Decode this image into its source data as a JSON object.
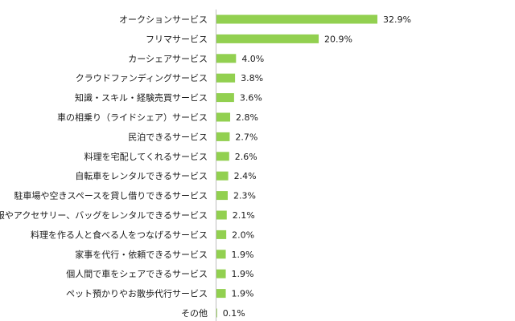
{
  "colors": {
    "bar": "#92d050",
    "axis": "#bfbfbf",
    "text": "#1a1a1a"
  },
  "chart_data": {
    "type": "bar",
    "orientation": "horizontal",
    "title": "",
    "xlabel": "",
    "ylabel": "",
    "grid": false,
    "legend": "none",
    "value_unit": "%",
    "xlim": [
      0,
      33
    ],
    "categories": [
      "オークションサービス",
      "フリマサービス",
      "カーシェアサービス",
      "クラウドファンディングサービス",
      "知識・スキル・経験売買サービス",
      "車の相乗り（ライドシェア）サービス",
      "民泊できるサービス",
      "料理を宅配してくれるサービス",
      "自転車をレンタルできるサービス",
      "駐車場や空きスペースを貸し借りできるサービス",
      "洋服やアクセサリー、バッグをレンタルできるサービス",
      "料理を作る人と食べる人をつなげるサービス",
      "家事を代行・依頼できるサービス",
      "個人間で車をシェアできるサービス",
      "ペット預かりやお散歩代行サービス",
      "その他"
    ],
    "values": [
      32.9,
      20.9,
      4.0,
      3.8,
      3.6,
      2.8,
      2.7,
      2.6,
      2.4,
      2.3,
      2.1,
      2.0,
      1.9,
      1.9,
      1.9,
      0.1
    ],
    "value_labels": [
      "32.9%",
      "20.9%",
      "4.0%",
      "3.8%",
      "3.6%",
      "2.8%",
      "2.7%",
      "2.6%",
      "2.4%",
      "2.3%",
      "2.1%",
      "2.0%",
      "1.9%",
      "1.9%",
      "1.9%",
      "0.1%"
    ]
  }
}
